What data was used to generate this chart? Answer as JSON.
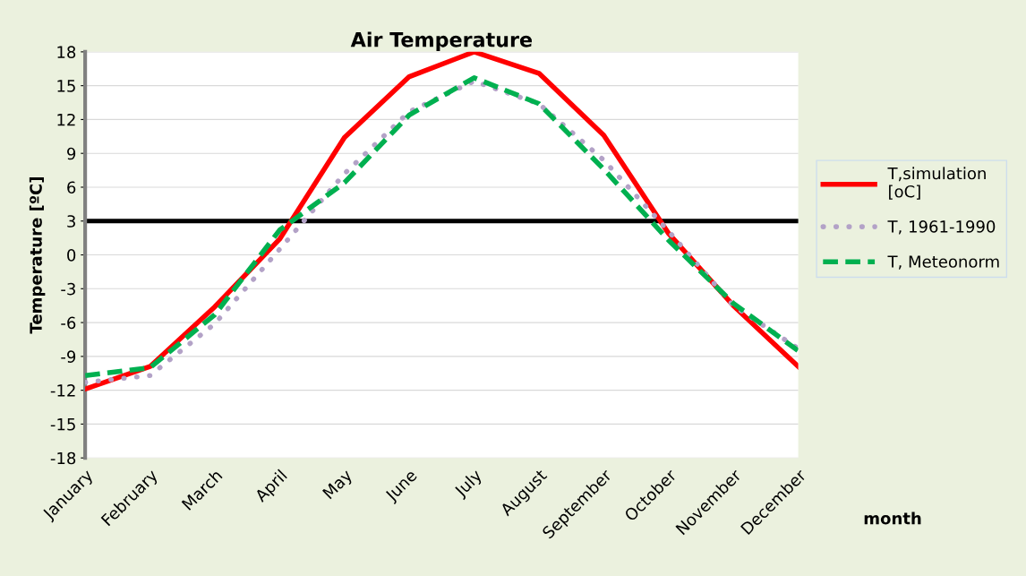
{
  "chart_data": {
    "type": "line",
    "title": "Air Temperature",
    "xlabel": "month",
    "ylabel": "Temperature [ºC]",
    "categories": [
      "January",
      "February",
      "March",
      "April",
      "May",
      "June",
      "July",
      "August",
      "September",
      "October",
      "November",
      "December"
    ],
    "series": [
      {
        "name": "T,simulation\n[oC]",
        "color": "#ff0000",
        "line_style": "solid",
        "values": [
          -11.9,
          -9.9,
          -4.6,
          1.4,
          10.4,
          15.8,
          18,
          16.1,
          10.6,
          1.9,
          -4.5,
          -9.9
        ]
      },
      {
        "name": "T, 1961-1990",
        "color": "#b3a2c7",
        "line_style": "dotted",
        "values": [
          -11.3,
          -10.7,
          -6.1,
          0.5,
          7.2,
          12.7,
          15.4,
          13.4,
          8.4,
          2.1,
          -4.5,
          -8.3
        ]
      },
      {
        "name": "T, Meteonorm",
        "color": "#00b050",
        "line_style": "dashed",
        "values": [
          -10.7,
          -10.0,
          -5.3,
          2.2,
          6.4,
          12.4,
          15.7,
          13.4,
          7.6,
          1.3,
          -4.3,
          -8.5
        ]
      }
    ],
    "ylim": [
      -18,
      18
    ],
    "yticks": [
      -18,
      -15,
      -12,
      -9,
      -6,
      -3,
      0,
      3,
      6,
      9,
      12,
      15,
      18
    ],
    "ref_lines": [
      {
        "axis": "y",
        "value": 3,
        "color": "#000000"
      }
    ],
    "grid": "y",
    "legend": "right",
    "marker": "none"
  }
}
